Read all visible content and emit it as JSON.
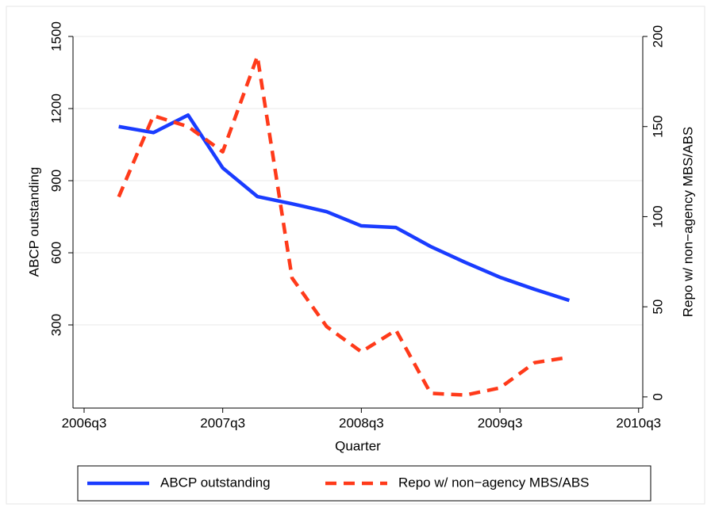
{
  "chart_data": {
    "type": "line",
    "xlabel": "Quarter",
    "ylabel": "ABCP outstanding",
    "y2label": "Repo w/ non−agency MBS/ABS",
    "x": [
      2006.75,
      2007.0,
      2007.25,
      2007.5,
      2007.75,
      2008.0,
      2008.25,
      2008.5,
      2008.75,
      2009.0,
      2009.25,
      2009.5,
      2009.75,
      2010.0
    ],
    "series": [
      {
        "name": "ABCP outstanding",
        "color": "#1a3cff",
        "dash": false,
        "axis": "y",
        "values": [
          1125,
          1100,
          1173,
          953,
          834,
          804,
          771,
          712,
          705,
          626,
          560,
          498,
          448,
          402
        ]
      },
      {
        "name": "Repo w/ non−agency MBS/ABS",
        "color": "#ff3a1a",
        "dash": true,
        "axis": "y2",
        "values": [
          111,
          156,
          150,
          136,
          189,
          66,
          39,
          25,
          37,
          2,
          1,
          5,
          19,
          22
        ]
      }
    ],
    "xlim": [
      2006.42,
      2010.53
    ],
    "xticks": [
      {
        "value": 2006.5,
        "label": "2006q3"
      },
      {
        "value": 2007.5,
        "label": "2007q3"
      },
      {
        "value": 2008.5,
        "label": "2008q3"
      },
      {
        "value": 2009.5,
        "label": "2009q3"
      },
      {
        "value": 2010.5,
        "label": "2010q3"
      }
    ],
    "ylim": [
      -46,
      1500
    ],
    "yticks": [
      300,
      600,
      900,
      1200,
      1500
    ],
    "y2lim": [
      -6.2,
      200
    ],
    "y2ticks": [
      0,
      50,
      100,
      150,
      200
    ],
    "grid": true,
    "legend": "bottom"
  }
}
